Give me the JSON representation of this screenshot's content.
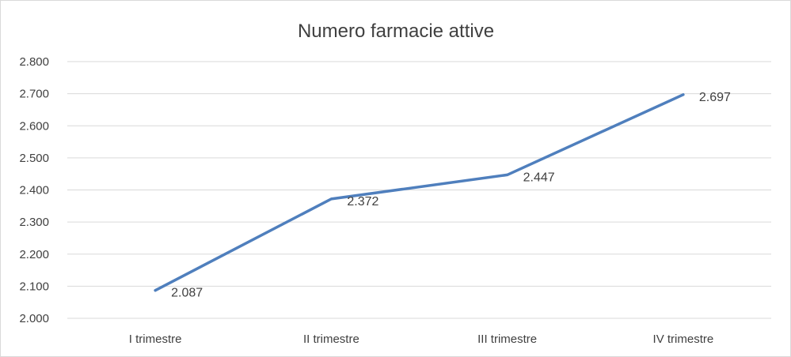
{
  "chart_data": {
    "type": "line",
    "title": "Numero farmacie attive",
    "categories": [
      "I trimestre",
      "II trimestre",
      "III trimestre",
      "IV trimestre"
    ],
    "series": [
      {
        "values": [
          2087,
          2372,
          2447,
          2697
        ],
        "labels": [
          "2.087",
          "2.372",
          "2.447",
          "2.697"
        ]
      }
    ],
    "y_ticks": [
      {
        "value": 2000,
        "label": "2.000"
      },
      {
        "value": 2100,
        "label": "2.100"
      },
      {
        "value": 2200,
        "label": "2.200"
      },
      {
        "value": 2300,
        "label": "2.300"
      },
      {
        "value": 2400,
        "label": "2.400"
      },
      {
        "value": 2500,
        "label": "2.500"
      },
      {
        "value": 2600,
        "label": "2.600"
      },
      {
        "value": 2700,
        "label": "2.700"
      },
      {
        "value": 2800,
        "label": "2.800"
      }
    ],
    "ylim": [
      2000,
      2800
    ],
    "grid": true,
    "legend": "none",
    "colors": {
      "series": "#4f7fbd",
      "grid": "#d9d9d9",
      "text": "#404040"
    }
  }
}
